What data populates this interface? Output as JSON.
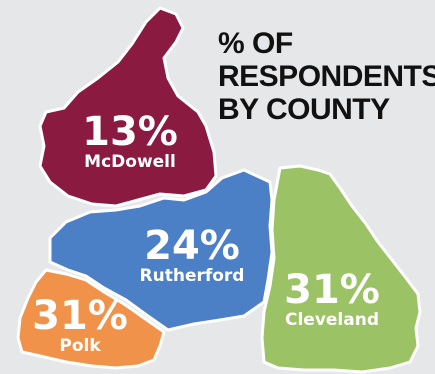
{
  "title_lines": [
    "% OF",
    "RESPONDENTS",
    "BY COUNTY"
  ],
  "colors": {
    "background": "#e6e7e8",
    "McDowell": "#8a1a3f",
    "Rutherford": "#4b7fc6",
    "Cleveland": "#9bc265",
    "Polk": "#f0924a",
    "outline": "#ffffff"
  },
  "chart_data": {
    "type": "choropleth",
    "title": "% OF RESPONDENTS BY COUNTY",
    "regions": [
      {
        "name": "McDowell",
        "value": 13,
        "label": "13%"
      },
      {
        "name": "Rutherford",
        "value": 24,
        "label": "24%"
      },
      {
        "name": "Cleveland",
        "value": 31,
        "label": "31%"
      },
      {
        "name": "Polk",
        "value": 31,
        "label": "31%"
      }
    ]
  }
}
